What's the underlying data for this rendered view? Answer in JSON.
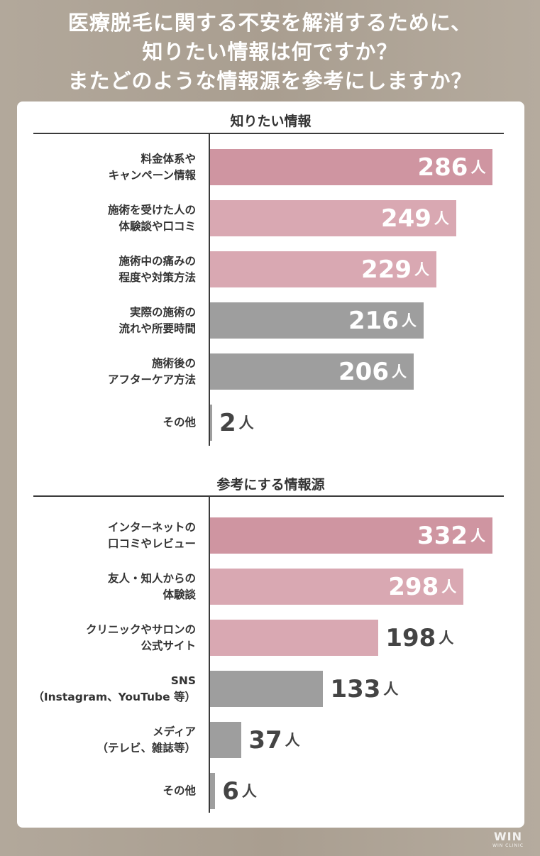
{
  "title_lines": [
    "医療脱毛に関する不安を解消するために、",
    "知りたい情報は何ですか？",
    "またどのような情報源を参考にしますか？"
  ],
  "unit": "人",
  "logo": {
    "text": "WIN",
    "sub": "WIN CLINIC"
  },
  "colors": {
    "accent": "#cf95a1",
    "pink": "#d9a8b2",
    "gray": "#9e9e9e"
  },
  "chart_data": [
    {
      "type": "bar",
      "orientation": "horizontal",
      "title": "知りたい情報",
      "categories": [
        [
          "料金体系や",
          "キャンペーン情報"
        ],
        [
          "施術を受けた人の",
          "体験談や口コミ"
        ],
        [
          "施術中の痛みの",
          "程度や対策方法"
        ],
        [
          "実際の施術の",
          "流れや所要時間"
        ],
        [
          "施術後の",
          "アフターケア方法"
        ],
        [
          "その他"
        ]
      ],
      "values": [
        286,
        249,
        229,
        216,
        206,
        2
      ],
      "bar_colors": [
        "#cf95a1",
        "#d9a8b2",
        "#d9a8b2",
        "#9e9e9e",
        "#9e9e9e",
        "#9e9e9e"
      ],
      "xlim": [
        0,
        290
      ]
    },
    {
      "type": "bar",
      "orientation": "horizontal",
      "title": "参考にする情報源",
      "categories": [
        [
          "インターネットの",
          "口コミやレビュー"
        ],
        [
          "友人・知人からの",
          "体験談"
        ],
        [
          "クリニックやサロンの",
          "公式サイト"
        ],
        [
          "SNS",
          "（Instagram、YouTube 等）"
        ],
        [
          "メディア",
          "（テレビ、雑誌等）"
        ],
        [
          "その他"
        ]
      ],
      "values": [
        332,
        298,
        198,
        133,
        37,
        6
      ],
      "bar_colors": [
        "#cf95a1",
        "#d9a8b2",
        "#d9a8b2",
        "#9e9e9e",
        "#9e9e9e",
        "#9e9e9e"
      ],
      "xlim": [
        0,
        337
      ]
    }
  ]
}
